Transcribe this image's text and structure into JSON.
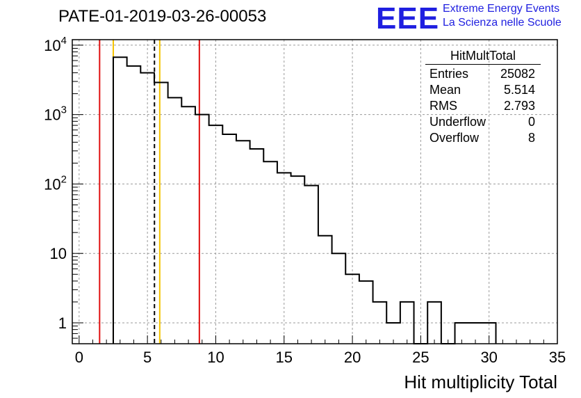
{
  "header": {
    "run_title": "PATE-01-2019-03-26-00053",
    "logo_text": "EEE",
    "logo_line1": "Extreme Energy Events",
    "logo_line2": "La Scienza nelle Scuole",
    "logo_color": "#1f1fe0"
  },
  "stats_box": {
    "title": "HitMultTotal",
    "rows": [
      {
        "label": "Entries",
        "value": "25082"
      },
      {
        "label": "Mean",
        "value": "5.514"
      },
      {
        "label": "RMS",
        "value": "2.793"
      },
      {
        "label": "Underflow",
        "value": "0"
      },
      {
        "label": "Overflow",
        "value": "8"
      }
    ]
  },
  "chart_data": {
    "type": "histogram",
    "title": "PATE-01-2019-03-26-00053",
    "xlabel": "Hit multiplicity Total",
    "ylabel": "",
    "xlim": [
      -0.5,
      35
    ],
    "ylim": [
      0.5,
      12000
    ],
    "yscale": "log",
    "grid": true,
    "bin_width": 1,
    "bin_low_edges": [
      2.5,
      3.5,
      4.5,
      5.5,
      6.5,
      7.5,
      8.5,
      9.5,
      10.5,
      11.5,
      12.5,
      13.5,
      14.5,
      15.5,
      16.5,
      17.5,
      18.5,
      19.5,
      20.5,
      21.5,
      22.5,
      23.5,
      24.5,
      25.5,
      26.5,
      27.5,
      28.5,
      29.5
    ],
    "counts": [
      6700,
      5000,
      4000,
      2900,
      1750,
      1300,
      1000,
      700,
      520,
      420,
      320,
      210,
      145,
      130,
      95,
      18,
      10,
      5,
      4,
      2,
      1,
      2,
      0,
      2,
      0,
      1,
      1,
      1
    ],
    "x_ticks": [
      "0",
      "5",
      "10",
      "15",
      "20",
      "25",
      "30",
      "35"
    ],
    "x_tick_values": [
      0,
      5,
      10,
      15,
      20,
      25,
      30,
      35
    ],
    "y_ticks": [
      "1",
      "10",
      "10^2",
      "10^3",
      "10^4"
    ],
    "y_tick_values": [
      1,
      10,
      100,
      1000,
      10000
    ],
    "markers": [
      {
        "x": 1.5,
        "color": "#e01010",
        "style": "solid"
      },
      {
        "x": 2.5,
        "color": "#f5c400",
        "style": "solid"
      },
      {
        "x": 5.514,
        "color": "#000000",
        "style": "dashed"
      },
      {
        "x": 5.9,
        "color": "#f5c400",
        "style": "solid"
      },
      {
        "x": 8.8,
        "color": "#e01010",
        "style": "solid"
      }
    ],
    "stats": {
      "entries": 25082,
      "mean": 5.514,
      "rms": 2.793,
      "underflow": 0,
      "overflow": 8
    }
  }
}
